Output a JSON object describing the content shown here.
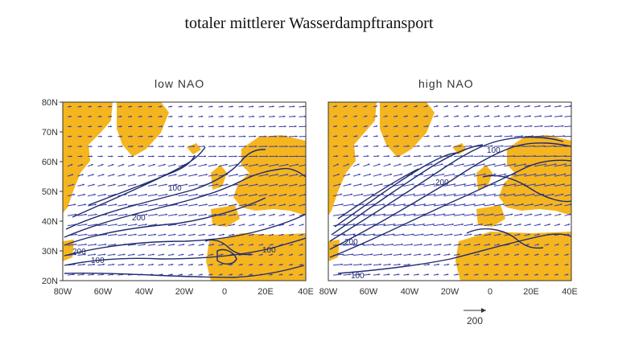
{
  "title": "totaler mittlerer Wasserdampftransport",
  "panels": [
    {
      "title": "low NAO",
      "contour_labels": [
        "100",
        "200",
        "200",
        "100",
        "100"
      ]
    },
    {
      "title": "high NAO",
      "contour_labels": [
        "100",
        "200",
        "200",
        "100"
      ]
    }
  ],
  "y_ticks": [
    "80N",
    "70N",
    "60N",
    "50N",
    "40N",
    "30N",
    "20N"
  ],
  "x_ticks_left": [
    "80W",
    "60W",
    "40W",
    "20W",
    "0",
    "20E",
    "40E"
  ],
  "x_ticks_right": [
    "80W",
    "60W",
    "40W",
    "20W",
    "0",
    "20E",
    "40E"
  ],
  "reference_vector": {
    "label": "200"
  },
  "colors": {
    "land": "#f5b51e",
    "contours": "#1f2a6e",
    "vectors": "#3a3fa8",
    "ocean": "#ffffff"
  }
}
